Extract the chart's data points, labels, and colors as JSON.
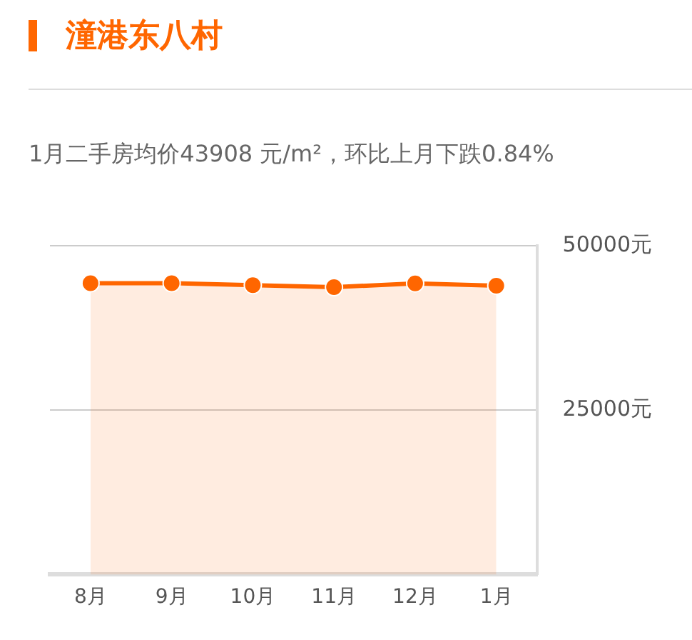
{
  "chart_data": {
    "type": "area",
    "title": "潼港东八村",
    "subtitle": "1月二手房均价43908 元/m²，环比上月下跌0.84%",
    "categories": [
      "8月",
      "9月",
      "10月",
      "11月",
      "12月",
      "1月"
    ],
    "series": [
      {
        "color": "#ff6600",
        "values": [
          44300,
          44300,
          44000,
          43700,
          44280,
          43908
        ]
      }
    ],
    "ylim": [
      0,
      50000
    ],
    "yticks": [
      {
        "value": 0,
        "label": null
      },
      {
        "value": 25000,
        "label": "25000元"
      },
      {
        "value": 50000,
        "label": "50000元"
      }
    ],
    "grid": "y",
    "legend": false,
    "marker": "circle"
  }
}
